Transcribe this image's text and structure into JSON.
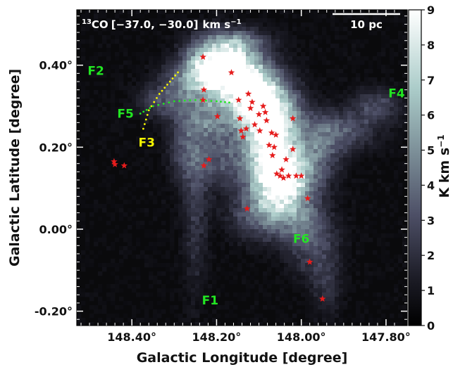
{
  "chart_data": {
    "type": "heatmap",
    "title": "13CO [−37.0, −30.0] km s⁻¹",
    "title_parts": {
      "sup": "13",
      "species": "CO",
      "range": "[−37.0, −30.0]",
      "unit": "km s",
      "unit_exp": "−1"
    },
    "xlabel": "Galactic Longitude [degree]",
    "ylabel": "Galactic Latitude [degree]",
    "xlim": [
      148.53,
      147.75
    ],
    "ylim": [
      -0.235,
      0.535
    ],
    "xticks": [
      {
        "value": 148.4,
        "label": "148.40°"
      },
      {
        "value": 148.2,
        "label": "148.20°"
      },
      {
        "value": 148.0,
        "label": "148.00°"
      },
      {
        "value": 147.8,
        "label": "147.80°"
      }
    ],
    "yticks": [
      {
        "value": 0.4,
        "label": "0.40°"
      },
      {
        "value": 0.2,
        "label": "0.20°"
      },
      {
        "value": 0.0,
        "label": "0.00°"
      },
      {
        "value": -0.2,
        "label": "-0.20°"
      }
    ],
    "colorbar": {
      "label": "K km s",
      "label_exp": "−1",
      "range": [
        0,
        9
      ],
      "ticks": [
        "0",
        "1",
        "2",
        "3",
        "4",
        "5",
        "6",
        "7",
        "8",
        "9"
      ]
    },
    "scalebar": {
      "label": "10 pc"
    },
    "filaments": [
      {
        "name": "F1",
        "l": 148.215,
        "b": -0.175,
        "color": "#22e622"
      },
      {
        "name": "F2",
        "l": 148.485,
        "b": 0.385,
        "color": "#22e622"
      },
      {
        "name": "F3",
        "l": 148.365,
        "b": 0.21,
        "color": "#f5f500"
      },
      {
        "name": "F4",
        "l": 147.775,
        "b": 0.33,
        "color": "#22e622"
      },
      {
        "name": "F5",
        "l": 148.415,
        "b": 0.28,
        "color": "#22e622"
      },
      {
        "name": "F6",
        "l": 148.0,
        "b": -0.025,
        "color": "#22e622"
      }
    ],
    "dotted_lines": [
      {
        "color": "#f5f500",
        "points": [
          [
            148.373,
            0.245
          ],
          [
            148.36,
            0.29
          ],
          [
            148.335,
            0.33
          ],
          [
            148.31,
            0.36
          ],
          [
            148.285,
            0.39
          ]
        ]
      },
      {
        "color": "#22e622",
        "points": [
          [
            148.38,
            0.282
          ],
          [
            148.35,
            0.3
          ],
          [
            148.3,
            0.312
          ],
          [
            148.25,
            0.315
          ],
          [
            148.2,
            0.312
          ],
          [
            148.16,
            0.308
          ]
        ]
      }
    ],
    "star_color": "#e51c1c",
    "stars": [
      [
        148.442,
        0.165
      ],
      [
        148.44,
        0.158
      ],
      [
        148.418,
        0.155
      ],
      [
        148.232,
        0.42
      ],
      [
        148.23,
        0.34
      ],
      [
        148.232,
        0.315
      ],
      [
        148.23,
        0.155
      ],
      [
        148.218,
        0.17
      ],
      [
        148.198,
        0.275
      ],
      [
        148.165,
        0.382
      ],
      [
        148.148,
        0.315
      ],
      [
        148.145,
        0.27
      ],
      [
        148.142,
        0.24
      ],
      [
        148.138,
        0.225
      ],
      [
        148.13,
        0.245
      ],
      [
        148.125,
        0.33
      ],
      [
        148.12,
        0.295
      ],
      [
        148.116,
        0.31
      ],
      [
        148.11,
        0.255
      ],
      [
        148.1,
        0.28
      ],
      [
        148.098,
        0.24
      ],
      [
        148.09,
        0.3
      ],
      [
        148.085,
        0.285
      ],
      [
        148.082,
        0.265
      ],
      [
        148.076,
        0.205
      ],
      [
        148.07,
        0.235
      ],
      [
        148.068,
        0.18
      ],
      [
        148.064,
        0.2
      ],
      [
        148.06,
        0.23
      ],
      [
        148.058,
        0.135
      ],
      [
        148.05,
        0.13
      ],
      [
        148.046,
        0.145
      ],
      [
        148.042,
        0.125
      ],
      [
        148.036,
        0.17
      ],
      [
        148.03,
        0.13
      ],
      [
        148.02,
        0.195
      ],
      [
        148.012,
        0.13
      ],
      [
        148.02,
        0.27
      ],
      [
        148.0,
        0.13
      ],
      [
        147.985,
        0.075
      ],
      [
        148.128,
        0.05
      ],
      [
        147.98,
        -0.08
      ],
      [
        147.95,
        -0.17
      ]
    ]
  }
}
